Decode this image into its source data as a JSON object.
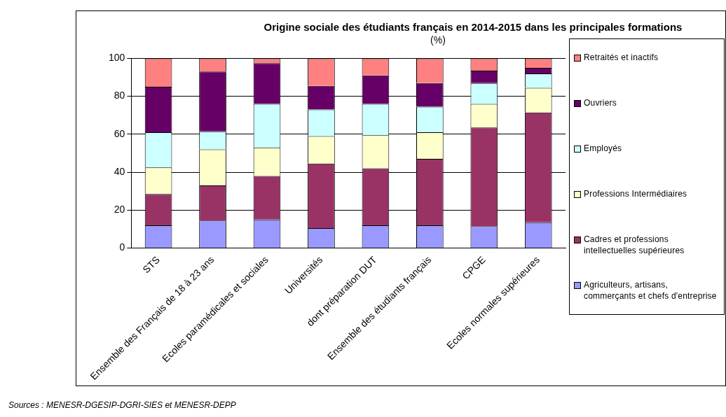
{
  "chart_data": {
    "type": "bar",
    "stacked": true,
    "title": "Origine sociale des étudiants français en 2014-2015  dans les principales formations",
    "subtitle": "(%)",
    "categories": [
      "STS",
      "Ensemble des Français de 18 à 23 ans",
      "Ecoles paramédicales et sociales",
      "Universités",
      "dont préparation DUT",
      "Ensemble des étudiants français",
      "CPGE",
      "Ecoles normales supérieures"
    ],
    "series": [
      {
        "name": "Agriculteurs, artisans, commerçants et chefs d'entreprise",
        "color": "#9999ff",
        "values": [
          12,
          14.5,
          15,
          10.5,
          12,
          12,
          11.5,
          13.5
        ]
      },
      {
        "name": "Cadres et professions intellectuelles supérieures",
        "color": "#993366",
        "values": [
          16.5,
          18.5,
          23,
          34,
          30,
          35,
          52,
          58
        ]
      },
      {
        "name": "Professions Intermédiaires",
        "color": "#ffffcc",
        "values": [
          14,
          19,
          15,
          14.5,
          17.5,
          14,
          12.5,
          13
        ]
      },
      {
        "name": "Employés",
        "color": "#ccffff",
        "values": [
          18.5,
          9.5,
          23,
          14,
          16.5,
          13.5,
          11,
          7.5
        ]
      },
      {
        "name": "Ouvriers",
        "color": "#660066",
        "values": [
          24,
          31.5,
          21.5,
          12.5,
          15,
          12.5,
          6.5,
          3
        ]
      },
      {
        "name": "Retraités et inactifs",
        "color": "#ff8080",
        "values": [
          15,
          7,
          2.5,
          14.5,
          9,
          13,
          6.5,
          5
        ]
      }
    ],
    "ylim": [
      0,
      100
    ],
    "yticks": [
      0,
      20,
      40,
      60,
      80,
      100
    ],
    "grid": "y",
    "legend": "right",
    "annotations": [
      "Sources : MENESR-DGESIP-DGRI-SIES et MENESR-DEPP"
    ]
  }
}
